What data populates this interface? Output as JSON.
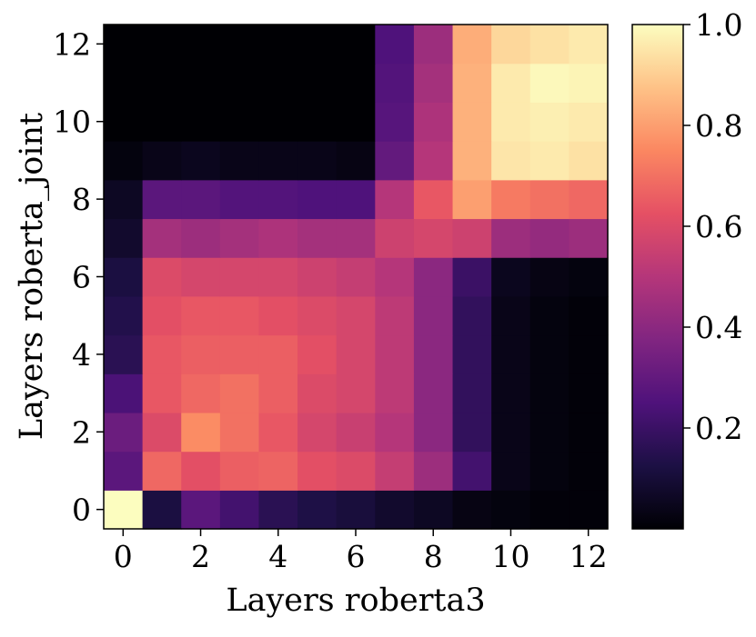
{
  "chart_data": {
    "type": "heatmap",
    "xlabel": "Layers roberta3",
    "ylabel": "Layers roberta_joint",
    "x": [
      0,
      1,
      2,
      3,
      4,
      5,
      6,
      7,
      8,
      9,
      10,
      11,
      12
    ],
    "y": [
      0,
      1,
      2,
      3,
      4,
      5,
      6,
      7,
      8,
      9,
      10,
      11,
      12
    ],
    "x_ticks": [
      "0",
      "2",
      "4",
      "6",
      "8",
      "10",
      "12"
    ],
    "y_ticks": [
      "0",
      "2",
      "4",
      "6",
      "8",
      "10",
      "12"
    ],
    "colormap": "magma",
    "colorbar": {
      "range": [
        0.0,
        1.0
      ],
      "ticks": [
        "0.2",
        "0.4",
        "0.6",
        "0.8",
        "1.0"
      ]
    },
    "values": [
      [
        1.0,
        0.12,
        0.28,
        0.22,
        0.16,
        0.13,
        0.11,
        0.08,
        0.06,
        0.03,
        0.02,
        0.01,
        0.01
      ],
      [
        0.28,
        0.68,
        0.62,
        0.66,
        0.67,
        0.62,
        0.6,
        0.54,
        0.44,
        0.22,
        0.04,
        0.02,
        0.01
      ],
      [
        0.32,
        0.6,
        0.76,
        0.7,
        0.64,
        0.58,
        0.55,
        0.5,
        0.4,
        0.18,
        0.04,
        0.02,
        0.01
      ],
      [
        0.24,
        0.64,
        0.68,
        0.7,
        0.66,
        0.6,
        0.58,
        0.52,
        0.4,
        0.18,
        0.04,
        0.02,
        0.01
      ],
      [
        0.16,
        0.64,
        0.66,
        0.66,
        0.66,
        0.62,
        0.58,
        0.52,
        0.4,
        0.18,
        0.04,
        0.02,
        0.01
      ],
      [
        0.14,
        0.62,
        0.64,
        0.64,
        0.62,
        0.6,
        0.58,
        0.52,
        0.4,
        0.18,
        0.04,
        0.02,
        0.01
      ],
      [
        0.12,
        0.6,
        0.58,
        0.58,
        0.58,
        0.56,
        0.54,
        0.5,
        0.4,
        0.2,
        0.05,
        0.03,
        0.02
      ],
      [
        0.08,
        0.46,
        0.44,
        0.46,
        0.48,
        0.46,
        0.46,
        0.56,
        0.58,
        0.56,
        0.44,
        0.42,
        0.44
      ],
      [
        0.06,
        0.28,
        0.28,
        0.26,
        0.26,
        0.25,
        0.25,
        0.5,
        0.64,
        0.8,
        0.72,
        0.7,
        0.68
      ],
      [
        0.02,
        0.04,
        0.05,
        0.04,
        0.04,
        0.04,
        0.03,
        0.3,
        0.5,
        0.84,
        0.95,
        0.96,
        0.94
      ],
      [
        0.0,
        0.0,
        0.0,
        0.0,
        0.0,
        0.0,
        0.0,
        0.27,
        0.48,
        0.84,
        0.96,
        0.97,
        0.96
      ],
      [
        0.0,
        0.0,
        0.0,
        0.0,
        0.0,
        0.0,
        0.0,
        0.26,
        0.46,
        0.84,
        0.96,
        0.99,
        0.98
      ],
      [
        0.0,
        0.0,
        0.0,
        0.0,
        0.0,
        0.0,
        0.0,
        0.25,
        0.44,
        0.83,
        0.92,
        0.94,
        0.96
      ]
    ]
  }
}
